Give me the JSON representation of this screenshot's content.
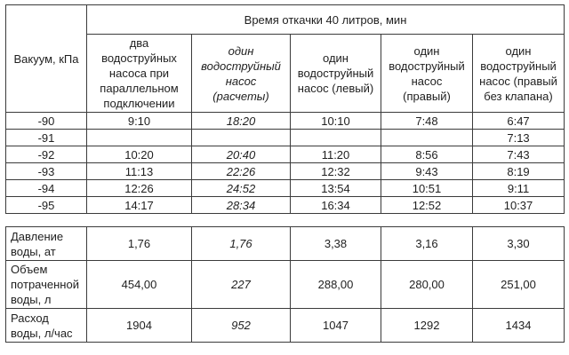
{
  "colors": {
    "background": "#ffffff",
    "text": "#1f1f1f",
    "border": "#3b3b3b"
  },
  "top_table": {
    "corner_header": "Вакуум, кПа",
    "span_header": "Время откачки 40 литров, мин",
    "col_headers": [
      {
        "label": "два\nводоструйных\nнасоса при\nпараллельном\nподключении",
        "italic": false
      },
      {
        "label": "один\nводоструйный\nнасос\n(расчеты)",
        "italic": true
      },
      {
        "label": "один\nводоструйный\nнасос (левый)",
        "italic": false
      },
      {
        "label": "один\nводоструйный\nнасос\n(правый)",
        "italic": false
      },
      {
        "label": "один\nводоструйный\nнасос (правый\nбез клапана)",
        "italic": false
      }
    ],
    "rows": [
      {
        "vacuum": "-90",
        "values": [
          "9:10",
          "18:20",
          "10:10",
          "7:48",
          "6:47"
        ]
      },
      {
        "vacuum": "-91",
        "values": [
          "",
          "",
          "",
          "",
          "7:13"
        ]
      },
      {
        "vacuum": "-92",
        "values": [
          "10:20",
          "20:40",
          "11:20",
          "8:56",
          "7:43"
        ]
      },
      {
        "vacuum": "-93",
        "values": [
          "11:13",
          "22:26",
          "12:32",
          "9:43",
          "8:19"
        ]
      },
      {
        "vacuum": "-94",
        "values": [
          "12:26",
          "24:52",
          "13:54",
          "10:51",
          "9:11"
        ]
      },
      {
        "vacuum": "-95",
        "values": [
          "14:17",
          "28:34",
          "16:34",
          "12:52",
          "10:37"
        ]
      }
    ]
  },
  "bottom_table": {
    "rows": [
      {
        "label": "Давление\nводы, ат",
        "values": [
          "1,76",
          "1,76",
          "3,38",
          "3,16",
          "3,30"
        ]
      },
      {
        "label": "Объем\nпотраченной\nводы, л",
        "values": [
          "454,00",
          "227",
          "288,00",
          "280,00",
          "251,00"
        ]
      },
      {
        "label": "Расход\nводы, л/час",
        "values": [
          "1904",
          "952",
          "1047",
          "1292",
          "1434"
        ]
      }
    ]
  }
}
